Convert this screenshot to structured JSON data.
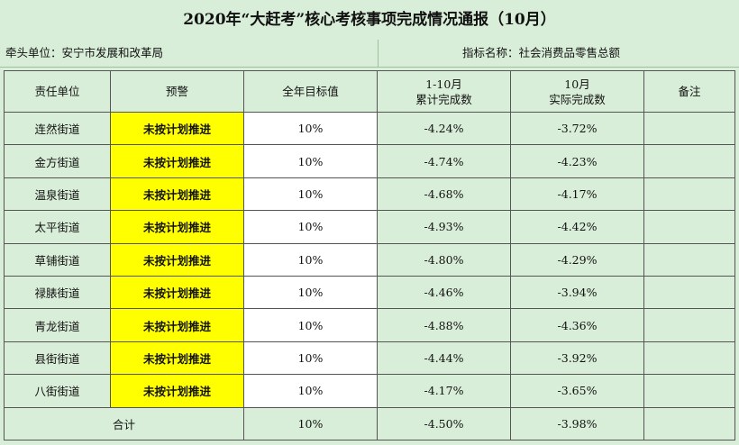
{
  "title": "2020年“大赶考”核心考核事项完成情况通报（10月）",
  "meta": {
    "lead_unit": "牵头单位：安宁市发展和改革局",
    "indicator": "指标名称：社会消费品零售总额"
  },
  "headers": {
    "unit": "责任单位",
    "warning": "预警",
    "target": "全年目标值",
    "cumulative_l1": "1-10月",
    "cumulative_l2": "累计完成数",
    "actual_l1": "10月",
    "actual_l2": "实际完成数",
    "remark": "备注"
  },
  "rows": [
    {
      "unit": "连然街道",
      "warning": "未按计划推进",
      "target": "10%",
      "cumulative": "-4.24%",
      "actual": "-3.72%",
      "remark": ""
    },
    {
      "unit": "金方街道",
      "warning": "未按计划推进",
      "target": "10%",
      "cumulative": "-4.74%",
      "actual": "-4.23%",
      "remark": ""
    },
    {
      "unit": "温泉街道",
      "warning": "未按计划推进",
      "target": "10%",
      "cumulative": "-4.68%",
      "actual": "-4.17%",
      "remark": ""
    },
    {
      "unit": "太平街道",
      "warning": "未按计划推进",
      "target": "10%",
      "cumulative": "-4.93%",
      "actual": "-4.42%",
      "remark": ""
    },
    {
      "unit": "草铺街道",
      "warning": "未按计划推进",
      "target": "10%",
      "cumulative": "-4.80%",
      "actual": "-4.29%",
      "remark": ""
    },
    {
      "unit": "禄脿街道",
      "warning": "未按计划推进",
      "target": "10%",
      "cumulative": "-4.46%",
      "actual": "-3.94%",
      "remark": ""
    },
    {
      "unit": "青龙街道",
      "warning": "未按计划推进",
      "target": "10%",
      "cumulative": "-4.88%",
      "actual": "-4.36%",
      "remark": ""
    },
    {
      "unit": "县街街道",
      "warning": "未按计划推进",
      "target": "10%",
      "cumulative": "-4.44%",
      "actual": "-3.92%",
      "remark": ""
    },
    {
      "unit": "八街街道",
      "warning": "未按计划推进",
      "target": "10%",
      "cumulative": "-4.17%",
      "actual": "-3.65%",
      "remark": ""
    }
  ],
  "total": {
    "label": "合计",
    "target": "10%",
    "cumulative": "-4.50%",
    "actual": "-3.98%",
    "remark": ""
  },
  "colors": {
    "background": "#d9eed9",
    "warning": "#ffff00",
    "target_cell": "#ffffff"
  }
}
